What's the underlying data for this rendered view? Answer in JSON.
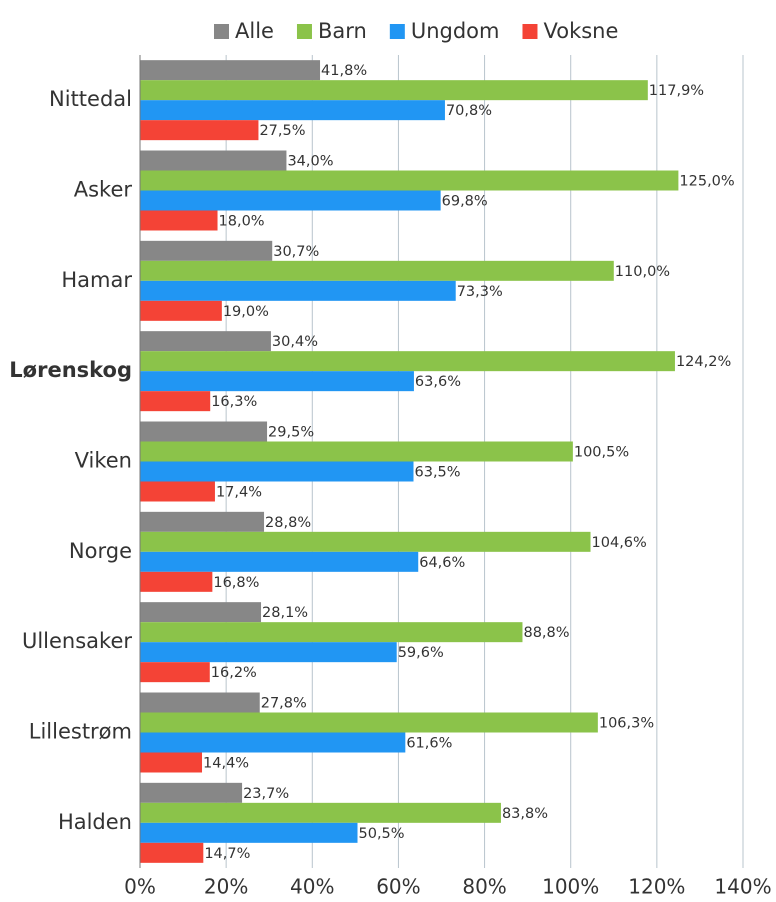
{
  "chart_data": {
    "type": "bar",
    "orientation": "horizontal",
    "categories": [
      "Nittedal",
      "Asker",
      "Hamar",
      "Lørenskog",
      "Viken",
      "Norge",
      "Ullensaker",
      "Lillestrøm",
      "Halden"
    ],
    "highlight_index": 3,
    "series": [
      {
        "name": "Alle",
        "color": "#878787",
        "values": [
          41.8,
          34.0,
          30.7,
          30.4,
          29.5,
          28.8,
          28.1,
          27.8,
          23.7
        ],
        "value_labels": [
          "41,8%",
          "34,0%",
          "30,7%",
          "30,4%",
          "29,5%",
          "28,8%",
          "28,1%",
          "27,8%",
          "23,7%"
        ]
      },
      {
        "name": "Barn",
        "color": "#8bc34a",
        "values": [
          117.9,
          125.0,
          110.0,
          124.2,
          100.5,
          104.6,
          88.8,
          106.3,
          83.8
        ],
        "value_labels": [
          "117,9%",
          "125,0%",
          "110,0%",
          "124,2%",
          "100,5%",
          "104,6%",
          "88,8%",
          "106,3%",
          "83,8%"
        ]
      },
      {
        "name": "Ungdom",
        "color": "#2196f3",
        "values": [
          70.8,
          69.8,
          73.3,
          63.6,
          63.5,
          64.6,
          59.6,
          61.6,
          50.5
        ],
        "value_labels": [
          "70,8%",
          "69,8%",
          "73,3%",
          "63,6%",
          "63,5%",
          "64,6%",
          "59,6%",
          "61,6%",
          "50,5%"
        ]
      },
      {
        "name": "Voksne",
        "color": "#f44336",
        "values": [
          27.5,
          18.0,
          19.0,
          16.3,
          17.4,
          16.8,
          16.2,
          14.4,
          14.7
        ],
        "value_labels": [
          "27,5%",
          "18,0%",
          "19,0%",
          "16,3%",
          "17,4%",
          "16,8%",
          "16,2%",
          "14,4%",
          "14,7%"
        ]
      }
    ],
    "xlim": [
      0,
      140
    ],
    "xticks": [
      {
        "value": 0,
        "label": "0%"
      },
      {
        "value": 20,
        "label": "20%"
      },
      {
        "value": 40,
        "label": "40%"
      },
      {
        "value": 60,
        "label": "60%"
      },
      {
        "value": 80,
        "label": "80%"
      },
      {
        "value": 100,
        "label": "100%"
      },
      {
        "value": 120,
        "label": "120%"
      },
      {
        "value": 140,
        "label": "140%"
      }
    ],
    "grid": true,
    "legend": "top"
  }
}
